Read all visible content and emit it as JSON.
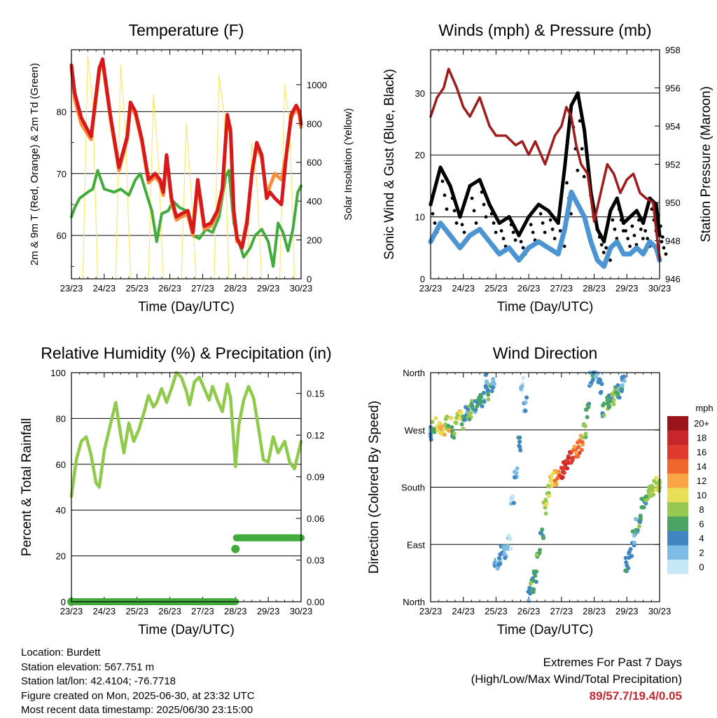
{
  "info": {
    "location": "Location: Burdett",
    "elevation": "Station elevation: 567.751 m",
    "latlon": "Station lat/lon: 42.4104; -76.7718",
    "created": "Figure created on Mon, 2025-06-30, at 23:32 UTC",
    "latest": "Most recent data timestamp: 2025/06/30 23:15:00"
  },
  "extremes": {
    "line1": "Extremes For Past 7 Days",
    "line2": "(High/Low/Max Wind/Total Precipitation)",
    "values": "89/57.7/19.4/0.05"
  },
  "chart_data": [
    {
      "type": "line",
      "title": "Temperature (F)",
      "xlabel": "Time (Day/UTC)",
      "ylabel": "2m & 9m T (Red, Orange) & 2m Td (Green)",
      "y2label": "Solar Insolation (Yellow)",
      "x_ticks": [
        "23/23",
        "24/23",
        "25/23",
        "26/23",
        "27/23",
        "28/23",
        "29/23",
        "30/23"
      ],
      "xlim": [
        0,
        7
      ],
      "ylim": [
        53,
        90
      ],
      "y_ticks": [
        60,
        70,
        80
      ],
      "y2lim": [
        0,
        1180
      ],
      "y2_ticks": [
        0,
        200,
        400,
        600,
        800,
        1000
      ],
      "grid": "horizontal",
      "series": [
        {
          "label": "2m T",
          "color": "#d7191c",
          "x": [
            0,
            0.1,
            0.3,
            0.6,
            0.85,
            0.95,
            1.2,
            1.45,
            1.55,
            1.7,
            1.8,
            1.95,
            2.15,
            2.35,
            2.55,
            2.7,
            2.8,
            2.9,
            3.05,
            3.2,
            3.35,
            3.55,
            3.7,
            3.85,
            4.05,
            4.25,
            4.45,
            4.6,
            4.75,
            4.85,
            4.95,
            5.05,
            5.2,
            5.35,
            5.5,
            5.65,
            5.8,
            5.95,
            6.05,
            6.2,
            6.4,
            6.55,
            6.7,
            6.85,
            6.95,
            7
          ],
          "y": [
            87.5,
            83,
            79,
            76,
            87,
            88.5,
            79,
            71,
            73,
            76,
            81.5,
            80,
            75.5,
            69,
            70,
            69,
            67,
            73,
            66,
            63,
            63.5,
            64,
            60.5,
            69,
            61.5,
            62,
            64,
            67.5,
            79.5,
            77,
            64,
            59.5,
            58,
            62,
            70,
            75,
            73,
            66,
            67,
            66,
            65,
            73,
            79.5,
            81,
            80,
            78
          ]
        },
        {
          "label": "9m T",
          "color": "#fd8d3c",
          "x": [
            0,
            0.1,
            0.3,
            0.6,
            0.85,
            0.95,
            1.2,
            1.45,
            1.55,
            1.7,
            1.8,
            1.95,
            2.15,
            2.35,
            2.55,
            2.7,
            2.8,
            2.9,
            3.05,
            3.2,
            3.35,
            3.55,
            3.7,
            3.85,
            4.05,
            4.25,
            4.45,
            4.6,
            4.75,
            4.85,
            4.95,
            5.05,
            5.2,
            5.35,
            5.5,
            5.65,
            5.8,
            5.95,
            6.05,
            6.2,
            6.4,
            6.55,
            6.7,
            6.85,
            6.95,
            7
          ],
          "y": [
            87,
            82,
            78,
            75.5,
            86.5,
            88,
            78.5,
            70.5,
            72.5,
            75.5,
            81,
            79.5,
            75,
            68.5,
            69.5,
            68.5,
            66.5,
            72.5,
            65.5,
            62.5,
            63,
            63.5,
            60,
            68.5,
            61,
            61.5,
            63.5,
            67,
            79,
            76.5,
            63.5,
            59,
            58.5,
            62.5,
            70,
            74.5,
            72.5,
            66.5,
            68,
            70,
            69,
            73,
            79,
            80.5,
            79.5,
            77.5
          ]
        },
        {
          "label": "2m Td",
          "color": "#41ab3c",
          "x": [
            0,
            0.1,
            0.25,
            0.5,
            0.65,
            0.8,
            1.0,
            1.3,
            1.5,
            1.75,
            1.95,
            2.1,
            2.3,
            2.45,
            2.6,
            2.75,
            2.95,
            3.1,
            3.3,
            3.5,
            3.7,
            3.9,
            4.1,
            4.3,
            4.5,
            4.7,
            4.8,
            4.95,
            5.1,
            5.25,
            5.45,
            5.6,
            5.8,
            6.0,
            6.15,
            6.3,
            6.45,
            6.6,
            6.75,
            6.9,
            7
          ],
          "y": [
            63,
            64.5,
            66,
            67,
            67.5,
            70.5,
            67.5,
            67,
            67.5,
            66.5,
            69,
            70,
            66.5,
            64,
            59,
            63.5,
            64,
            65.5,
            64.5,
            64,
            60,
            59.5,
            61,
            60.5,
            63,
            69.5,
            70.5,
            62,
            59,
            56.5,
            58,
            60,
            61,
            59,
            55,
            62,
            60.5,
            57.5,
            61,
            67,
            68
          ]
        },
        {
          "label": "Solar Insolation",
          "color": "#fde76a",
          "axis": "y2",
          "x": [
            0.35,
            0.5,
            0.65,
            0.8,
            1.35,
            1.5,
            1.65,
            1.8,
            2.35,
            2.5,
            2.65,
            2.8,
            3.35,
            3.5,
            3.65,
            3.8,
            4.35,
            4.5,
            4.65,
            4.8,
            5.35,
            5.5,
            5.65,
            5.8,
            6.35,
            6.5,
            6.65,
            6.8
          ],
          "y": [
            0,
            1150,
            900,
            0,
            0,
            1100,
            750,
            0,
            0,
            950,
            600,
            0,
            0,
            800,
            450,
            0,
            0,
            1050,
            850,
            0,
            0,
            700,
            500,
            0,
            0,
            1000,
            800,
            0
          ]
        }
      ]
    },
    {
      "type": "line",
      "title": "Winds (mph) & Pressure (mb)",
      "xlabel": "Time (Day/UTC)",
      "ylabel": "Sonic Wind & Gust (Blue, Black)",
      "y2label": "Station Pressure (Maroon)",
      "x_ticks": [
        "23/23",
        "24/23",
        "25/23",
        "26/23",
        "27/23",
        "28/23",
        "29/23",
        "30/23"
      ],
      "xlim": [
        0,
        7
      ],
      "ylim": [
        0,
        37
      ],
      "y_ticks": [
        0,
        10,
        20,
        30
      ],
      "y2lim": [
        946,
        958
      ],
      "y2_ticks": [
        946,
        948,
        950,
        952,
        954,
        956,
        958
      ],
      "grid": "horizontal",
      "series": [
        {
          "label": "Sonic Wind",
          "color": "#4d94d2",
          "x": [
            0,
            0.3,
            0.6,
            0.9,
            1.2,
            1.5,
            1.8,
            2.1,
            2.4,
            2.7,
            3.0,
            3.3,
            3.6,
            3.9,
            4.1,
            4.3,
            4.5,
            4.7,
            4.9,
            5.1,
            5.3,
            5.5,
            5.7,
            5.9,
            6.1,
            6.3,
            6.5,
            6.7,
            6.9,
            7
          ],
          "y": [
            6,
            9,
            7,
            5,
            7,
            8,
            6,
            4,
            5,
            3,
            5,
            6,
            5,
            4,
            8,
            14,
            12,
            10,
            6,
            3,
            2,
            5,
            6,
            4,
            4,
            5,
            4,
            6,
            5,
            3
          ]
        },
        {
          "label": "Gust",
          "color": "#000000",
          "x": [
            0,
            0.3,
            0.6,
            0.9,
            1.2,
            1.5,
            1.8,
            2.1,
            2.4,
            2.7,
            3.0,
            3.3,
            3.6,
            3.9,
            4.1,
            4.3,
            4.5,
            4.7,
            4.9,
            5.1,
            5.3,
            5.5,
            5.7,
            5.9,
            6.1,
            6.3,
            6.5,
            6.7,
            6.9,
            7
          ],
          "y": [
            12,
            18,
            15,
            10,
            15,
            16,
            12,
            9,
            10,
            7,
            10,
            12,
            11,
            9,
            18,
            28,
            30,
            24,
            14,
            8,
            6,
            11,
            13,
            9,
            10,
            11,
            9,
            13,
            12,
            7
          ]
        },
        {
          "label": "Station Pressure",
          "color": "#a01c1c",
          "axis": "y2",
          "x": [
            0,
            0.2,
            0.4,
            0.55,
            0.8,
            1.0,
            1.2,
            1.5,
            1.8,
            2.0,
            2.3,
            2.6,
            2.8,
            3.0,
            3.2,
            3.5,
            3.8,
            4.0,
            4.15,
            4.3,
            4.45,
            4.6,
            4.8,
            5.0,
            5.2,
            5.4,
            5.6,
            5.8,
            6.0,
            6.2,
            6.4,
            6.6,
            6.8,
            7
          ],
          "y": [
            954.5,
            955.5,
            956,
            957,
            956,
            955,
            954.5,
            955.5,
            954,
            953.5,
            953.5,
            953,
            953.2,
            952.5,
            953.2,
            952,
            953.5,
            954,
            955,
            954.5,
            953,
            952,
            951.5,
            949,
            950.5,
            952,
            951.5,
            950.5,
            951.2,
            951.5,
            950.5,
            950.2,
            950,
            947
          ]
        }
      ]
    },
    {
      "type": "line",
      "title": "Relative Humidity (%) & Precipitation (in)",
      "xlabel": "Time (Day/UTC)",
      "ylabel": "Percent & Total Rainfall",
      "x_ticks": [
        "23/23",
        "24/23",
        "25/23",
        "26/23",
        "27/23",
        "28/23",
        "29/23",
        "30/23"
      ],
      "xlim": [
        0,
        7
      ],
      "ylim": [
        0,
        100
      ],
      "y_ticks": [
        0,
        20,
        40,
        60,
        80,
        100
      ],
      "y2lim": [
        0,
        0.165
      ],
      "y2_ticks": [
        "0.00",
        "0.03",
        "0.06",
        "0.09",
        "0.12",
        "0.15"
      ],
      "grid": "horizontal",
      "series": [
        {
          "label": "Relative Humidity",
          "color": "#8fca4a",
          "x": [
            0,
            0.15,
            0.3,
            0.45,
            0.6,
            0.75,
            0.85,
            1.0,
            1.2,
            1.35,
            1.5,
            1.6,
            1.75,
            1.9,
            2.05,
            2.2,
            2.35,
            2.5,
            2.6,
            2.75,
            2.9,
            3.05,
            3.2,
            3.35,
            3.5,
            3.6,
            3.75,
            3.9,
            4.05,
            4.2,
            4.3,
            4.45,
            4.6,
            4.75,
            4.85,
            5.0,
            5.1,
            5.25,
            5.4,
            5.55,
            5.7,
            5.85,
            6.0,
            6.15,
            6.3,
            6.5,
            6.65,
            6.8,
            6.95,
            7
          ],
          "y": [
            46,
            62,
            70,
            72,
            64,
            52,
            50,
            66,
            78,
            87,
            73,
            65,
            78,
            70,
            75,
            82,
            90,
            85,
            87,
            93,
            87,
            93,
            100,
            98,
            92,
            86,
            96,
            98,
            93,
            88,
            94,
            88,
            83,
            95,
            89,
            59,
            77,
            88,
            94,
            89,
            76,
            62,
            61,
            72,
            65,
            70,
            61,
            58,
            67,
            70
          ]
        },
        {
          "label": "Total Precipitation",
          "color": "#41ab3c",
          "axis": "y2",
          "x": [
            0,
            5.0,
            5.01,
            5.02,
            7
          ],
          "y": [
            0.0,
            0.0,
            0.038,
            0.046,
            0.046
          ]
        }
      ]
    },
    {
      "type": "scatter",
      "title": "Wind Direction",
      "xlabel": "Time (Day/UTC)",
      "ylabel": "Direction (Colored By Speed)",
      "x_ticks": [
        "23/23",
        "24/23",
        "25/23",
        "26/23",
        "27/23",
        "28/23",
        "29/23",
        "30/23"
      ],
      "xlim": [
        0,
        7
      ],
      "y_ticks": [
        "North",
        "East",
        "South",
        "West",
        "North"
      ],
      "ylim": [
        0,
        360
      ],
      "grid": "horizontal",
      "legend": {
        "position": "right",
        "title": "mph",
        "labels": [
          "20+",
          "18",
          "16",
          "14",
          "12",
          "10",
          "8",
          "6",
          "4",
          "2",
          "0"
        ],
        "colors": [
          "#99141b",
          "#c7262a",
          "#df3a2d",
          "#f0672d",
          "#f9a447",
          "#e8df57",
          "#97c851",
          "#4aa564",
          "#3f86c2",
          "#7ebbe5",
          "#c6e7f6"
        ]
      },
      "series": [
        {
          "label": "Wind Direction",
          "x": [
            0,
            0.1,
            0.2,
            0.3,
            0.4,
            0.5,
            0.6,
            0.7,
            0.8,
            0.9,
            1.0,
            1.1,
            1.2,
            1.3,
            1.4,
            1.5,
            1.6,
            1.7,
            1.8,
            1.9,
            2.0,
            2.05,
            2.1,
            2.2,
            2.3,
            2.4,
            2.5,
            2.6,
            2.7,
            2.8,
            2.9,
            3.0,
            3.1,
            3.2,
            3.3,
            3.4,
            3.5,
            3.6,
            3.7,
            3.8,
            3.9,
            4.0,
            4.1,
            4.2,
            4.3,
            4.4,
            4.5,
            4.6,
            4.7,
            4.8,
            4.9,
            5.0,
            5.1,
            5.2,
            5.3,
            5.4,
            5.5,
            5.6,
            5.7,
            5.8,
            5.9,
            6.0,
            6.1,
            6.2,
            6.3,
            6.4,
            6.5,
            6.6,
            6.7,
            6.8,
            6.9,
            7
          ],
          "y": [
            265,
            272,
            278,
            275,
            268,
            282,
            280,
            268,
            292,
            288,
            282,
            300,
            298,
            310,
            305,
            320,
            318,
            345,
            330,
            340,
            65,
            58,
            70,
            80,
            75,
            95,
            160,
            200,
            250,
            340,
            310,
            12,
            25,
            40,
            80,
            110,
            150,
            175,
            190,
            195,
            200,
            205,
            210,
            218,
            225,
            232,
            240,
            250,
            270,
            300,
            350,
            355,
            352,
            340,
            300,
            310,
            315,
            320,
            330,
            330,
            345,
            60,
            80,
            100,
            120,
            130,
            150,
            165,
            175,
            178,
            185,
            180
          ],
          "speed": [
            4,
            6,
            10,
            12,
            10,
            8,
            12,
            6,
            8,
            10,
            6,
            4,
            8,
            6,
            4,
            6,
            4,
            4,
            6,
            4,
            4,
            2,
            4,
            4,
            2,
            2,
            2,
            2,
            4,
            2,
            4,
            4,
            6,
            6,
            6,
            6,
            8,
            8,
            10,
            12,
            14,
            16,
            16,
            18,
            16,
            14,
            14,
            12,
            8,
            6,
            4,
            4,
            2,
            4,
            6,
            6,
            6,
            8,
            6,
            4,
            4,
            4,
            4,
            4,
            4,
            6,
            6,
            6,
            8,
            8,
            10,
            8
          ]
        }
      ]
    }
  ]
}
